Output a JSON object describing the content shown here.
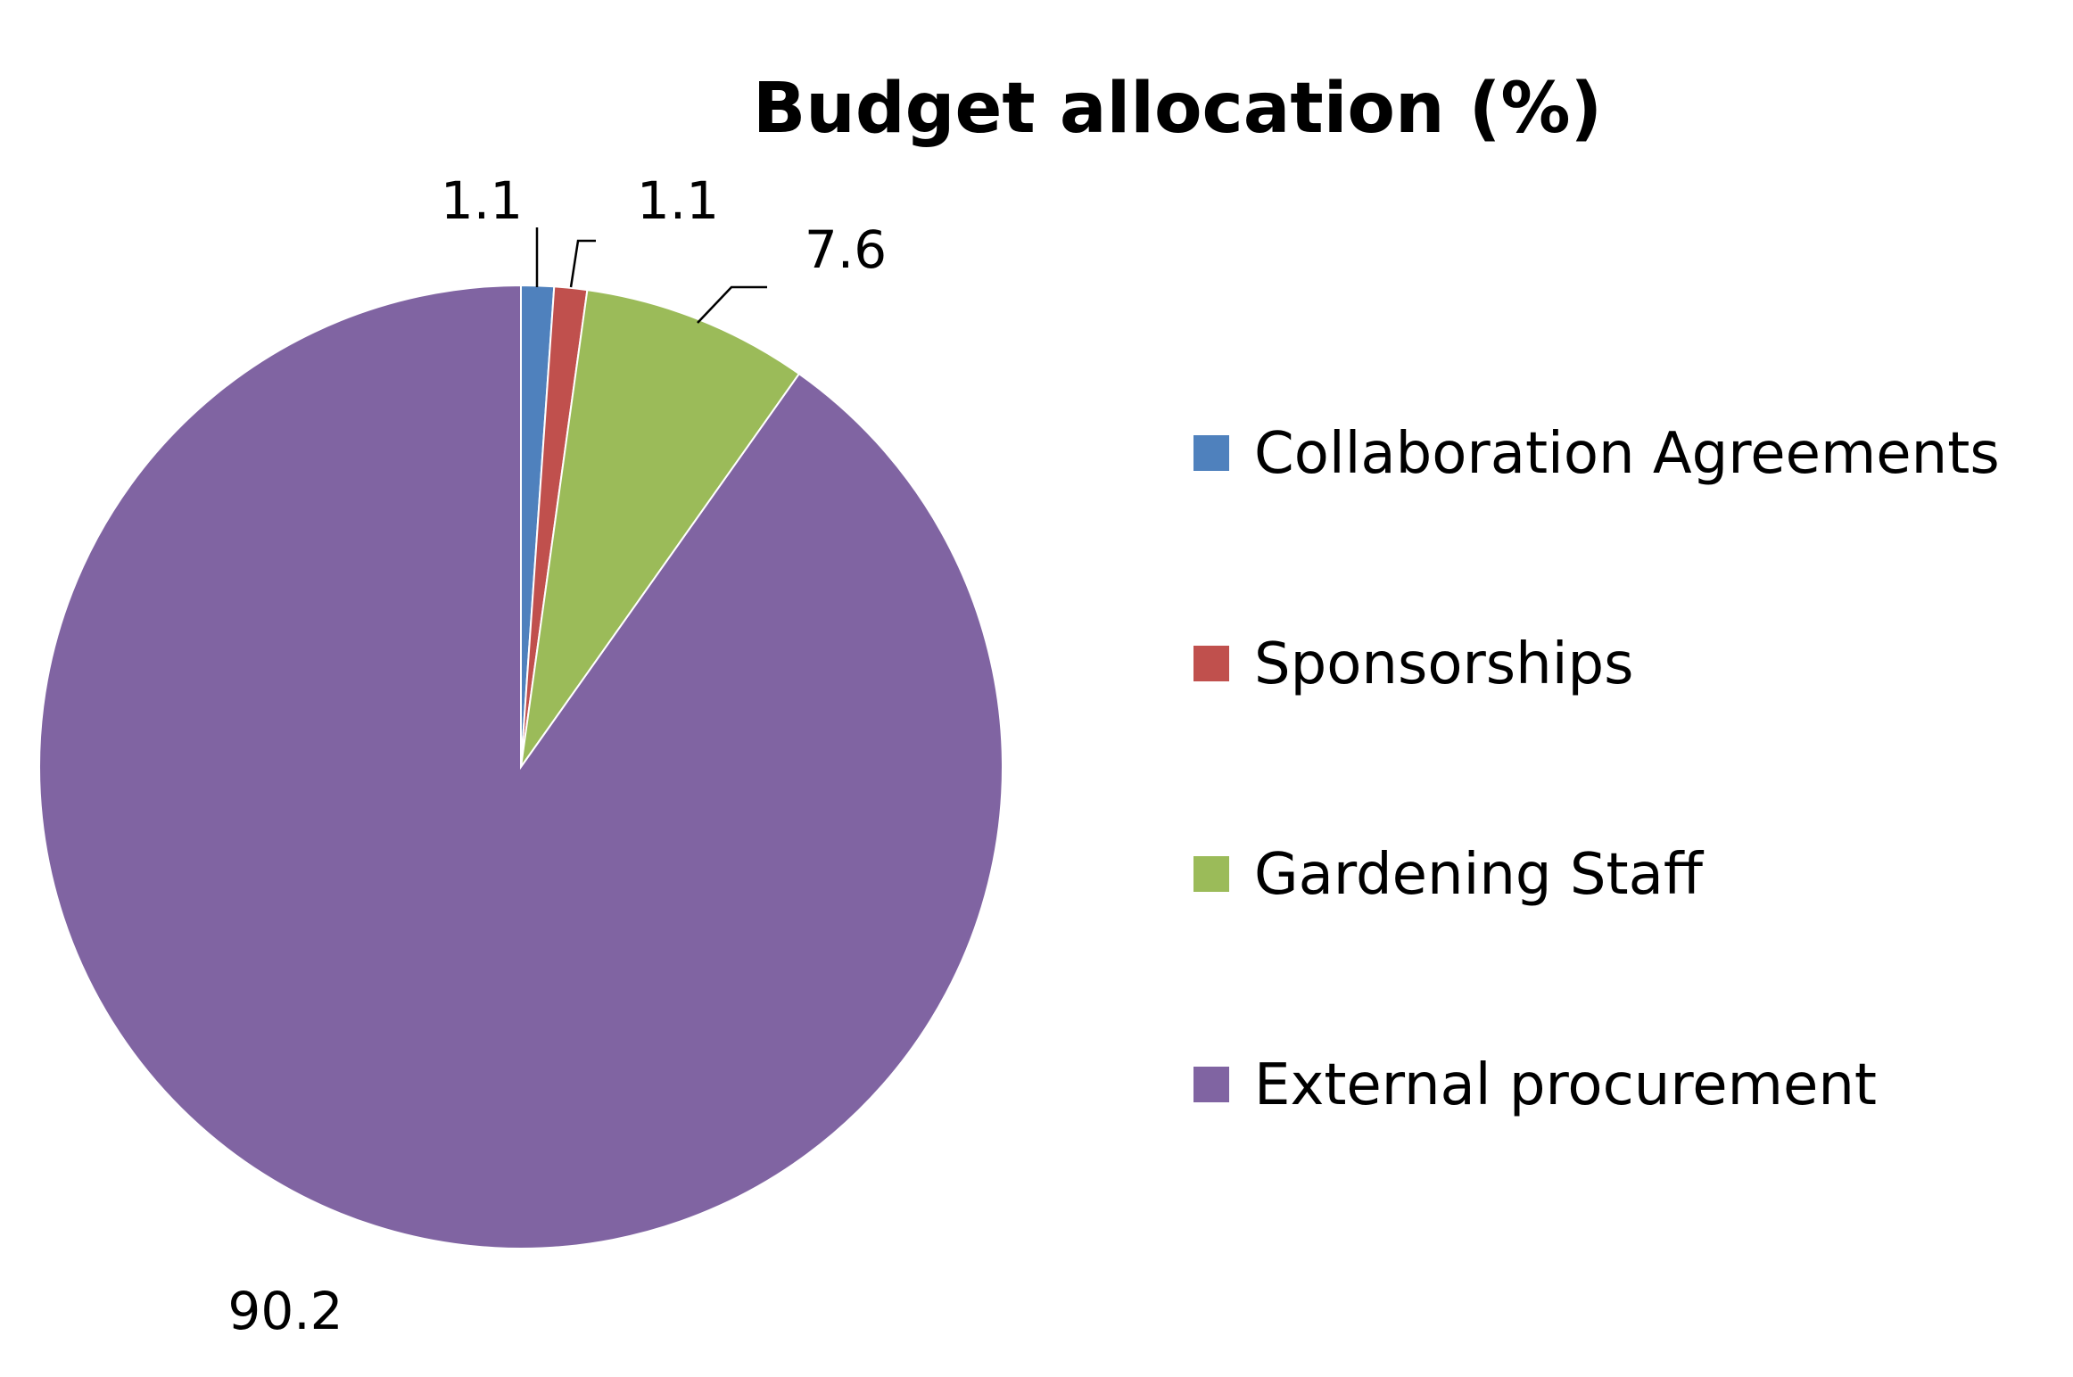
{
  "chart_data": {
    "type": "pie",
    "title": "Budget allocation (%)",
    "categories": [
      "Collaboration Agreements",
      "Sponsorships",
      "Gardening Staff",
      "External procurement"
    ],
    "values": [
      1.1,
      1.1,
      7.6,
      90.2
    ],
    "data_labels": [
      "1.1",
      "1.1",
      "7.6",
      "90.2"
    ],
    "colors": [
      "#4F81BD",
      "#C0504D",
      "#9BBB59",
      "#8064A2"
    ],
    "start_angle": "12 o'clock",
    "direction": "clockwise",
    "legend_position": "right"
  }
}
